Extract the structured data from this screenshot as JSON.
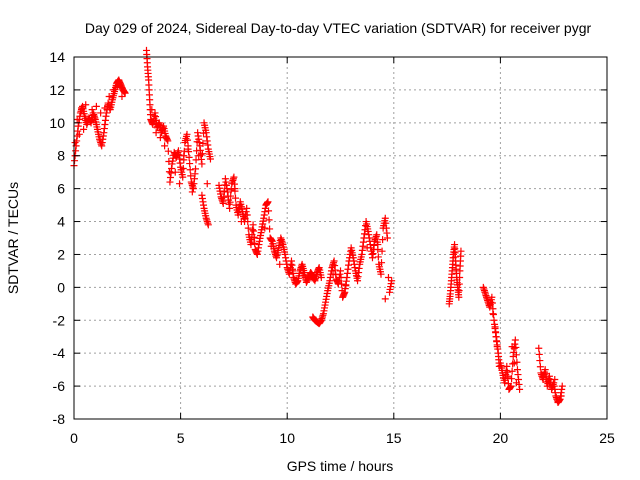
{
  "chart_data": {
    "type": "scatter",
    "title": "Day 029 of 2024, Sidereal Day-to-day VTEC variation (SDTVAR) for receiver pygr",
    "xlabel": "GPS time / hours",
    "ylabel": "SDTVAR / TECUs",
    "xlim": [
      0,
      25
    ],
    "ylim": [
      -8,
      14
    ],
    "x_ticks": [
      0,
      5,
      10,
      15,
      20,
      25
    ],
    "y_ticks": [
      -8,
      -6,
      -4,
      -2,
      0,
      2,
      4,
      6,
      8,
      10,
      12,
      14
    ],
    "grid": true,
    "marker": "+",
    "series_color": "#ff0000",
    "series": [
      {
        "name": "SDTVAR",
        "points": [
          [
            0.0,
            7.4
          ],
          [
            0.1,
            8.6
          ],
          [
            0.2,
            9.8
          ],
          [
            0.3,
            10.6
          ],
          [
            0.4,
            11.0
          ],
          [
            0.5,
            10.4
          ],
          [
            0.6,
            9.9
          ],
          [
            0.7,
            10.3
          ],
          [
            0.8,
            10.0
          ],
          [
            0.9,
            10.6
          ],
          [
            1.0,
            10.2
          ],
          [
            1.1,
            9.6
          ],
          [
            1.2,
            9.0
          ],
          [
            1.3,
            8.6
          ],
          [
            1.4,
            9.4
          ],
          [
            1.5,
            10.4
          ],
          [
            1.6,
            11.2
          ],
          [
            1.7,
            10.8
          ],
          [
            1.8,
            11.4
          ],
          [
            1.9,
            11.9
          ],
          [
            2.0,
            12.4
          ],
          [
            2.1,
            12.6
          ],
          [
            2.2,
            12.3
          ],
          [
            2.3,
            12.0
          ],
          [
            2.4,
            11.8
          ],
          [
            0.05,
            8.8
          ],
          [
            0.25,
            9.3
          ],
          [
            0.45,
            9.6
          ],
          [
            0.65,
            10.1
          ],
          [
            0.85,
            10.8
          ],
          [
            1.05,
            11.0
          ],
          [
            1.25,
            10.6
          ],
          [
            1.45,
            10.9
          ],
          [
            1.65,
            11.6
          ],
          [
            1.85,
            12.0
          ],
          [
            2.05,
            12.2
          ],
          [
            2.25,
            11.6
          ],
          [
            0.15,
            10.2
          ],
          [
            0.35,
            10.9
          ],
          [
            0.55,
            11.1
          ],
          [
            3.4,
            14.4
          ],
          [
            3.45,
            13.4
          ],
          [
            3.5,
            12.6
          ],
          [
            3.55,
            11.4
          ],
          [
            3.6,
            10.2
          ],
          [
            3.7,
            9.9
          ],
          [
            3.8,
            10.6
          ],
          [
            3.9,
            9.7
          ],
          [
            4.0,
            10.0
          ],
          [
            4.1,
            9.4
          ],
          [
            4.2,
            9.8
          ],
          [
            4.3,
            9.2
          ],
          [
            4.4,
            8.9
          ],
          [
            4.5,
            6.4
          ],
          [
            4.6,
            7.5
          ],
          [
            4.7,
            8.2
          ],
          [
            4.8,
            7.9
          ],
          [
            4.9,
            8.3
          ],
          [
            5.0,
            7.3
          ],
          [
            5.1,
            6.7
          ],
          [
            5.2,
            8.8
          ],
          [
            5.3,
            9.3
          ],
          [
            5.4,
            7.9
          ],
          [
            5.5,
            6.4
          ],
          [
            5.6,
            6.0
          ],
          [
            5.7,
            7.2
          ],
          [
            5.8,
            9.4
          ],
          [
            5.9,
            8.6
          ],
          [
            6.0,
            7.5
          ],
          [
            6.1,
            10.0
          ],
          [
            6.2,
            9.4
          ],
          [
            6.3,
            8.4
          ],
          [
            6.4,
            7.8
          ],
          [
            6.0,
            5.6
          ],
          [
            6.1,
            4.8
          ],
          [
            6.2,
            4.2
          ],
          [
            6.3,
            3.8
          ],
          [
            3.65,
            10.8
          ],
          [
            3.85,
            9.4
          ],
          [
            4.05,
            9.1
          ],
          [
            4.25,
            8.6
          ],
          [
            4.75,
            7.0
          ],
          [
            4.95,
            6.3
          ],
          [
            5.15,
            8.0
          ],
          [
            5.35,
            8.4
          ],
          [
            5.55,
            5.8
          ],
          [
            5.85,
            8.0
          ],
          [
            6.25,
            6.3
          ],
          [
            6.8,
            6.2
          ],
          [
            6.9,
            5.5
          ],
          [
            7.0,
            5.1
          ],
          [
            7.1,
            6.6
          ],
          [
            7.2,
            5.8
          ],
          [
            7.3,
            4.8
          ],
          [
            7.4,
            6.3
          ],
          [
            7.5,
            6.7
          ],
          [
            7.6,
            5.0
          ],
          [
            7.7,
            4.4
          ],
          [
            7.8,
            5.2
          ],
          [
            7.9,
            4.6
          ],
          [
            8.0,
            4.0
          ],
          [
            8.1,
            4.8
          ],
          [
            8.2,
            3.2
          ],
          [
            8.3,
            2.6
          ],
          [
            8.4,
            3.8
          ],
          [
            8.5,
            2.3
          ],
          [
            8.6,
            2.0
          ],
          [
            8.7,
            2.8
          ],
          [
            8.8,
            3.5
          ],
          [
            8.9,
            4.2
          ],
          [
            9.0,
            5.0
          ],
          [
            9.1,
            5.2
          ],
          [
            9.2,
            3.0
          ],
          [
            9.3,
            2.8
          ],
          [
            9.4,
            2.2
          ],
          [
            9.5,
            1.8
          ],
          [
            9.6,
            2.4
          ],
          [
            9.7,
            3.0
          ],
          [
            9.8,
            2.6
          ],
          [
            9.9,
            2.0
          ],
          [
            10.0,
            1.2
          ],
          [
            10.1,
            0.8
          ],
          [
            10.2,
            1.6
          ],
          [
            10.3,
            0.6
          ],
          [
            10.4,
            0.2
          ],
          [
            10.5,
            0.4
          ],
          [
            10.6,
            1.0
          ],
          [
            10.7,
            1.4
          ],
          [
            10.8,
            0.9
          ],
          [
            10.9,
            0.3
          ],
          [
            11.0,
            0.6
          ],
          [
            11.1,
            0.9
          ],
          [
            11.2,
            0.7
          ],
          [
            11.3,
            0.4
          ],
          [
            11.4,
            0.9
          ],
          [
            11.5,
            1.2
          ],
          [
            11.6,
            0.6
          ],
          [
            11.2,
            -1.8
          ],
          [
            11.3,
            -2.0
          ],
          [
            11.4,
            -2.1
          ],
          [
            11.5,
            -2.2
          ],
          [
            11.6,
            -2.0
          ],
          [
            11.7,
            -1.6
          ],
          [
            11.8,
            -0.9
          ],
          [
            11.9,
            -0.2
          ],
          [
            12.0,
            0.4
          ],
          [
            12.1,
            1.2
          ],
          [
            12.2,
            1.6
          ],
          [
            12.3,
            0.5
          ],
          [
            12.4,
            0.2
          ],
          [
            12.5,
            1.0
          ],
          [
            12.6,
            -0.6
          ],
          [
            12.7,
            -0.3
          ],
          [
            12.8,
            0.6
          ],
          [
            12.9,
            1.6
          ],
          [
            13.0,
            2.4
          ],
          [
            13.1,
            1.8
          ],
          [
            13.2,
            1.0
          ],
          [
            13.3,
            0.4
          ],
          [
            13.4,
            1.4
          ],
          [
            13.5,
            2.0
          ],
          [
            13.6,
            3.0
          ],
          [
            13.7,
            4.0
          ],
          [
            13.8,
            3.4
          ],
          [
            13.9,
            2.6
          ],
          [
            14.0,
            1.8
          ],
          [
            14.1,
            2.8
          ],
          [
            14.2,
            3.2
          ],
          [
            14.3,
            1.4
          ],
          [
            14.4,
            0.8
          ],
          [
            14.5,
            3.6
          ],
          [
            14.6,
            4.2
          ],
          [
            14.7,
            3.0
          ],
          [
            14.8,
            -0.3
          ],
          [
            14.9,
            0.4
          ],
          [
            14.6,
            -0.7
          ],
          [
            7.05,
            5.8
          ],
          [
            7.55,
            6.0
          ],
          [
            7.85,
            4.0
          ],
          [
            8.45,
            3.0
          ],
          [
            8.95,
            3.6
          ],
          [
            9.25,
            2.5
          ],
          [
            9.65,
            1.4
          ],
          [
            10.25,
            1.0
          ],
          [
            10.75,
            0.7
          ],
          [
            11.25,
            0.5
          ],
          [
            12.15,
            0.8
          ],
          [
            12.75,
            0.1
          ],
          [
            13.25,
            0.7
          ],
          [
            13.75,
            2.4
          ],
          [
            14.25,
            2.6
          ],
          [
            14.75,
            0.6
          ],
          [
            17.6,
            -1.0
          ],
          [
            17.65,
            -0.4
          ],
          [
            17.7,
            0.4
          ],
          [
            17.75,
            1.2
          ],
          [
            17.8,
            2.0
          ],
          [
            17.85,
            2.6
          ],
          [
            17.9,
            1.6
          ],
          [
            17.95,
            0.6
          ],
          [
            18.0,
            0.0
          ],
          [
            18.05,
            -0.6
          ],
          [
            18.1,
            1.0
          ],
          [
            18.15,
            2.2
          ],
          [
            19.2,
            0.0
          ],
          [
            19.3,
            -0.4
          ],
          [
            19.4,
            -0.8
          ],
          [
            19.5,
            -1.2
          ],
          [
            19.6,
            -0.6
          ],
          [
            19.7,
            -2.0
          ],
          [
            19.8,
            -3.0
          ],
          [
            19.9,
            -4.0
          ],
          [
            19.95,
            -4.8
          ],
          [
            19.75,
            -2.4
          ],
          [
            19.85,
            -3.6
          ],
          [
            19.65,
            -1.6
          ],
          [
            20.0,
            -4.6
          ],
          [
            20.1,
            -5.2
          ],
          [
            20.2,
            -5.8
          ],
          [
            20.3,
            -4.8
          ],
          [
            20.4,
            -6.2
          ],
          [
            20.5,
            -6.0
          ],
          [
            20.6,
            -4.2
          ],
          [
            20.7,
            -3.2
          ],
          [
            20.8,
            -5.0
          ],
          [
            20.9,
            -6.2
          ],
          [
            20.55,
            -3.6
          ],
          [
            20.35,
            -5.4
          ],
          [
            20.75,
            -5.8
          ],
          [
            20.65,
            -4.6
          ],
          [
            21.8,
            -3.7
          ],
          [
            21.9,
            -5.2
          ],
          [
            22.0,
            -5.6
          ],
          [
            22.1,
            -5.0
          ],
          [
            22.2,
            -6.0
          ],
          [
            22.3,
            -5.4
          ],
          [
            22.4,
            -6.2
          ],
          [
            22.5,
            -5.8
          ],
          [
            22.6,
            -6.6
          ],
          [
            22.7,
            -7.0
          ],
          [
            22.8,
            -6.8
          ],
          [
            22.9,
            -6.0
          ],
          [
            22.3,
            -5.8
          ],
          [
            22.85,
            -6.6
          ],
          [
            22.55,
            -5.6
          ]
        ]
      }
    ]
  }
}
